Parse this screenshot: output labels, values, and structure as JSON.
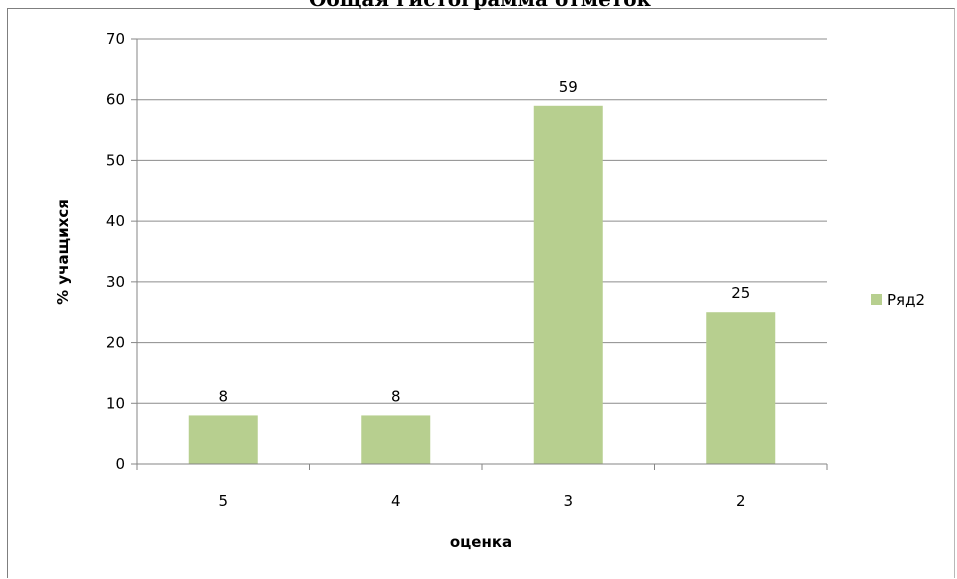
{
  "chart_data": {
    "type": "bar",
    "title": "Общая гистограмма отметок",
    "xlabel": "оценка",
    "ylabel": "% учащихся",
    "categories": [
      "5",
      "4",
      "3",
      "2"
    ],
    "series": [
      {
        "name": "Ряд2",
        "values": [
          8,
          8,
          59,
          25
        ],
        "color": "#b7cf8f"
      }
    ],
    "ylim": [
      0,
      70
    ],
    "yticks": [
      "0",
      "10",
      "20",
      "30",
      "40",
      "50",
      "60",
      "70"
    ],
    "data_labels": [
      "8",
      "8",
      "59",
      "25"
    ],
    "grid": true,
    "legend_position": "right"
  },
  "colors": {
    "bar": "#b7cf8f",
    "gridline": "#8c8c8c",
    "axis": "#868686"
  }
}
